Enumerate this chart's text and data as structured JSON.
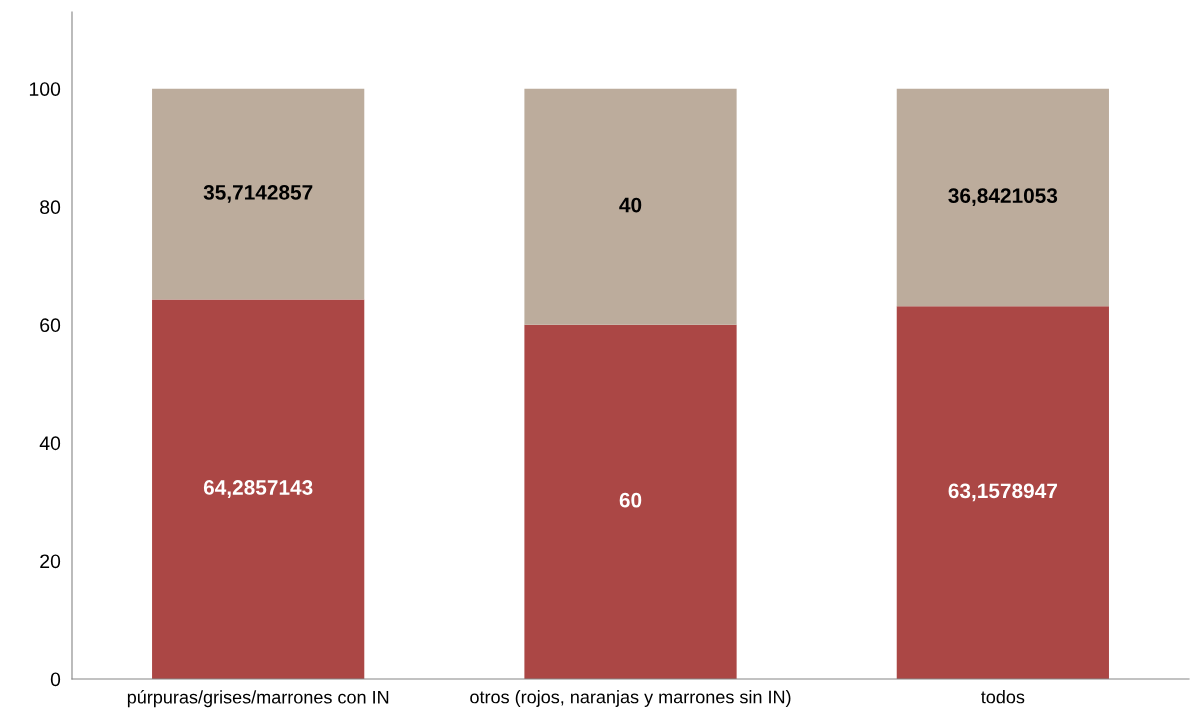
{
  "chart_data": {
    "type": "bar",
    "stacked": true,
    "categories": [
      "púrpuras/grises/marrones con IN",
      "otros (rojos, naranjas y marrones sin IN)",
      "todos"
    ],
    "series": [
      {
        "color": "#ab4745",
        "values": [
          64.2857143,
          60,
          63.1578947
        ],
        "value_labels": [
          "64,2857143",
          "60",
          "63,1578947"
        ]
      },
      {
        "color": "#bcac9c",
        "values": [
          35.7142857,
          40,
          36.8421053
        ],
        "value_labels": [
          "35,7142857",
          "40",
          "36,8421053"
        ]
      }
    ],
    "ylim": [
      0,
      113
    ],
    "yticks": [
      0,
      20,
      40,
      60,
      80,
      100
    ],
    "grid": false
  }
}
